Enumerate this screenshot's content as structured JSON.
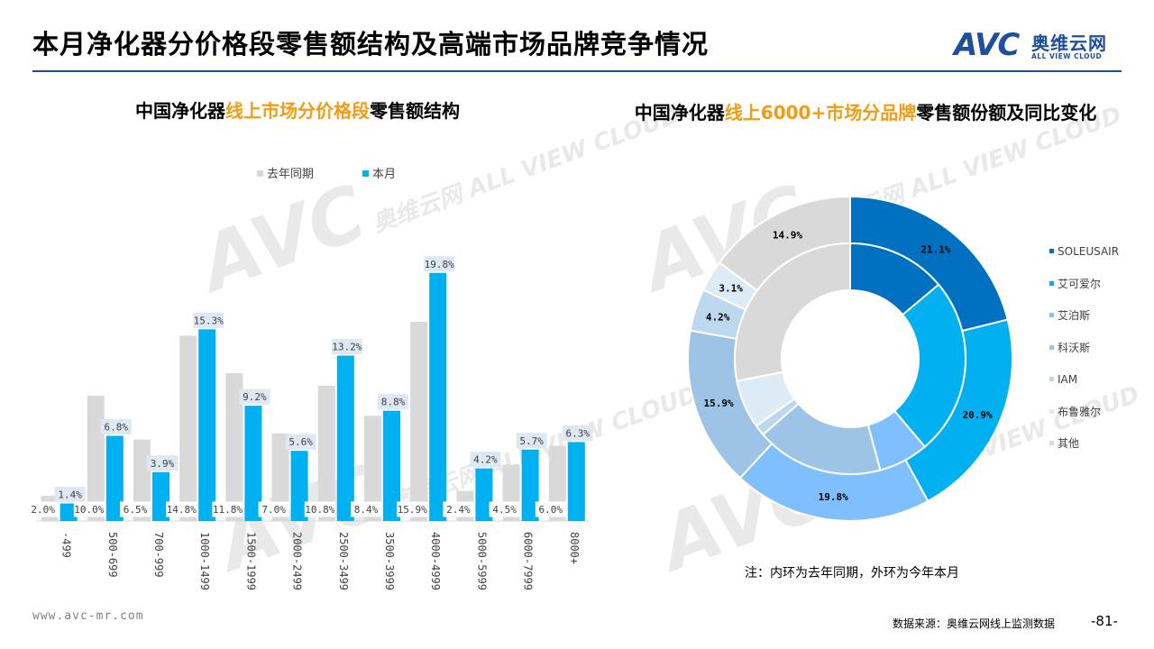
{
  "page": {
    "title": "本月净化器分价格段零售额结构及高端市场品牌竞争情况",
    "logo": {
      "mark": "AVC",
      "cn": "奥维云网",
      "en": "ALL VIEW CLOUD"
    },
    "footer_url": "www.avc-mr.com",
    "source": "数据来源：奥维云网线上监测数据",
    "page_number": "-81-",
    "note": "注：内环为去年同期，外环为今年本月"
  },
  "left": {
    "title_pre": "中国净化器",
    "title_hl": "线上市场分价格段",
    "title_post": "零售额结构"
  },
  "right": {
    "title_pre": "中国净化器",
    "title_hl": "线上6000+市场分品牌",
    "title_post": "零售额份额及同比变化"
  },
  "chart_data": [
    {
      "type": "bar",
      "categories": [
        "-499",
        "500-699",
        "700-999",
        "1000-1499",
        "1500-1999",
        "2000-2499",
        "2500-3499",
        "3500-3999",
        "4000-4999",
        "5000-5999",
        "6000-7999",
        "8000+"
      ],
      "series": [
        {
          "name": "去年同期",
          "color": "#d9d9d9",
          "values": [
            2.0,
            10.0,
            6.5,
            14.8,
            11.8,
            7.0,
            10.8,
            8.4,
            15.9,
            2.4,
            4.5,
            6.0
          ]
        },
        {
          "name": "本月",
          "color": "#00b0f0",
          "values": [
            1.4,
            6.8,
            3.9,
            15.3,
            9.2,
            5.6,
            13.2,
            8.8,
            19.8,
            4.2,
            5.7,
            6.3
          ]
        }
      ],
      "ylim": [
        0,
        21
      ],
      "legend": "top",
      "data_labels": true
    },
    {
      "type": "pie",
      "variant": "double-donut",
      "labels": [
        "SOLEUSAIR",
        "艾可爱尔",
        "艾泊斯",
        "科沃斯",
        "IAM",
        "布鲁雅尔",
        "其他"
      ],
      "colors": [
        "#0070c0",
        "#00b0f0",
        "#7fbfff",
        "#9dc3e6",
        "#bdd7ee",
        "#ddebf7",
        "#d9d9d9"
      ],
      "outer_values": [
        21.1,
        20.9,
        19.8,
        15.9,
        4.2,
        3.1,
        14.9
      ],
      "inner_values": [
        13.9,
        24.9,
        7.0,
        17.8,
        1.5,
        6.8,
        28.1
      ],
      "legend": "right"
    }
  ]
}
